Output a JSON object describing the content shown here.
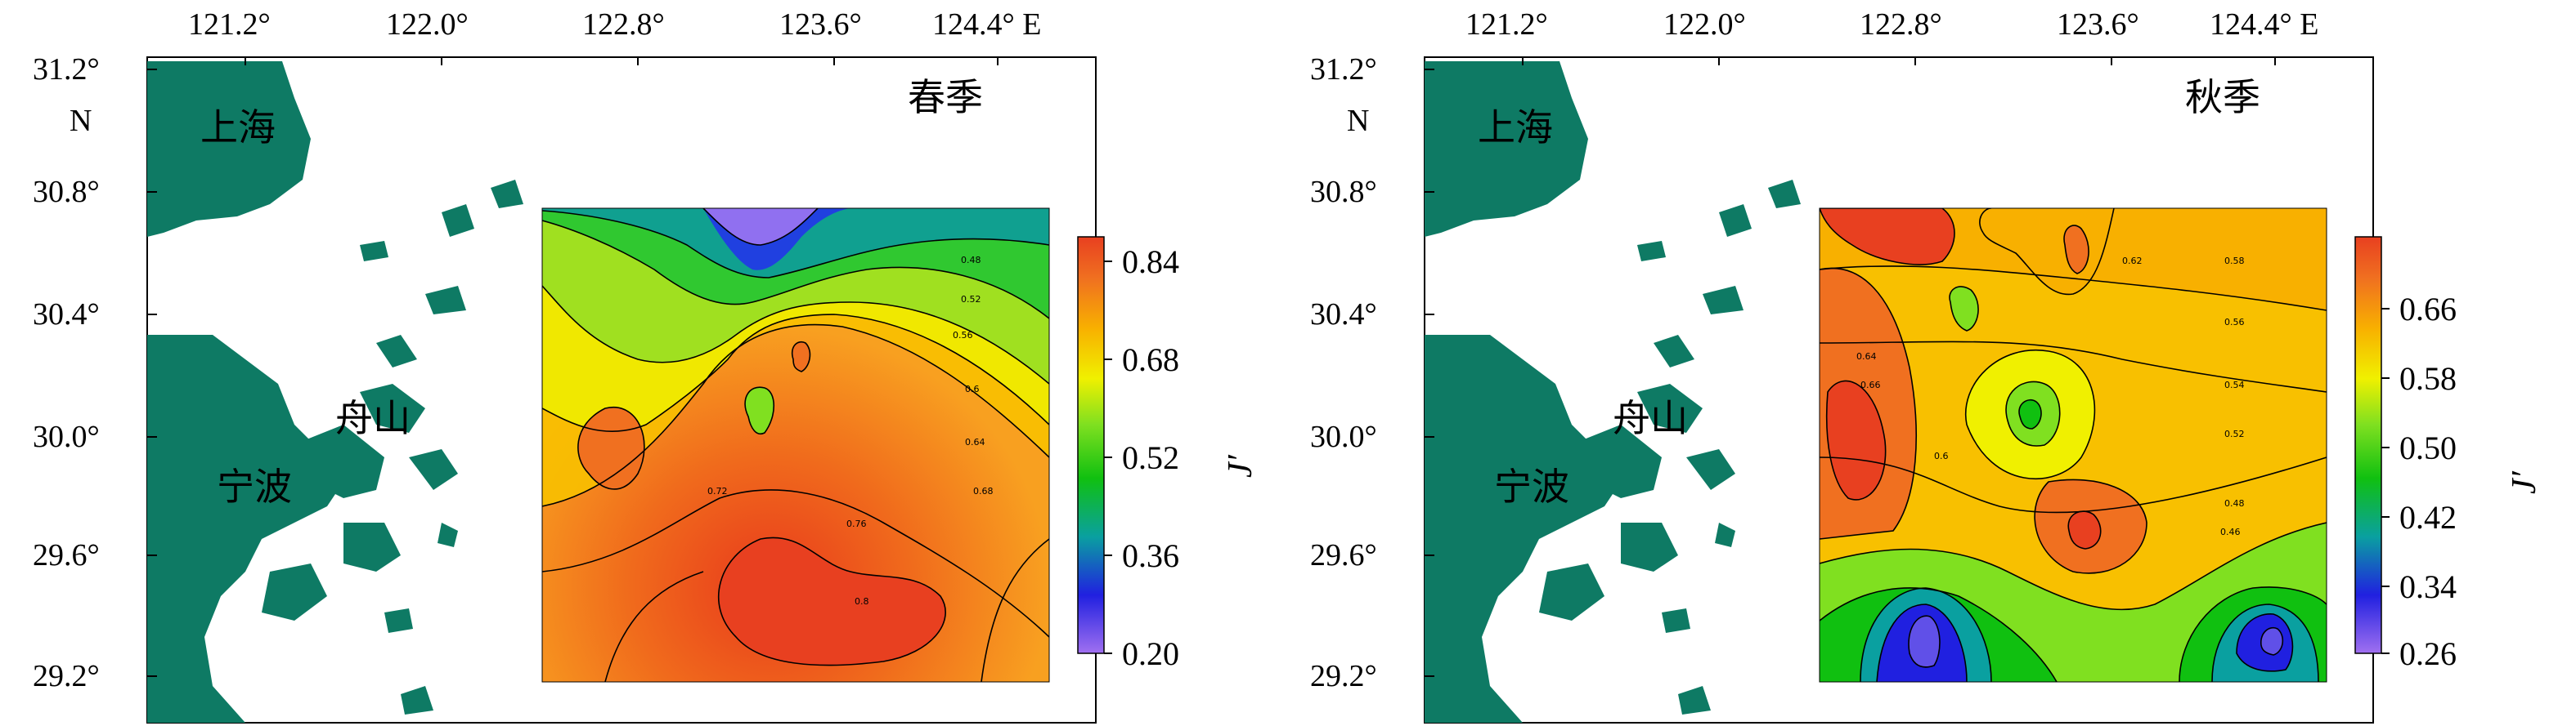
{
  "map": {
    "lon_ticks": [
      "121.2°",
      "122.0°",
      "122.8°",
      "123.6°",
      "124.4° E"
    ],
    "lat_ticks": [
      "31.2°",
      "30.8°",
      "30.4°",
      "30.0°",
      "29.6°",
      "29.2°"
    ],
    "north_label": "N",
    "places": [
      "上海",
      "舟山",
      "宁波"
    ],
    "colorbar_label": "J′",
    "land_color": "#0e7a64",
    "colormap": [
      "#a070f0",
      "#2020e0",
      "#0aa0a0",
      "#10c010",
      "#80e020",
      "#f0f000",
      "#f8b000",
      "#f07020",
      "#e84020"
    ]
  },
  "panels": [
    {
      "id": "spring",
      "title": "春季",
      "colorbar_ticks": [
        "0.84",
        "0.68",
        "0.52",
        "0.36",
        "0.20"
      ],
      "contour_levels": [
        "0.48",
        "0.52",
        "0.56",
        "0.6",
        "0.64",
        "0.68",
        "0.72",
        "0.76",
        "0.8"
      ]
    },
    {
      "id": "autumn",
      "title": "秋季",
      "colorbar_ticks": [
        "0.66",
        "0.58",
        "0.50",
        "0.42",
        "0.34",
        "0.26"
      ],
      "contour_levels": [
        "0.46",
        "0.48",
        "0.52",
        "0.54",
        "0.56",
        "0.58",
        "0.6",
        "0.62",
        "0.64",
        "0.66"
      ]
    }
  ]
}
